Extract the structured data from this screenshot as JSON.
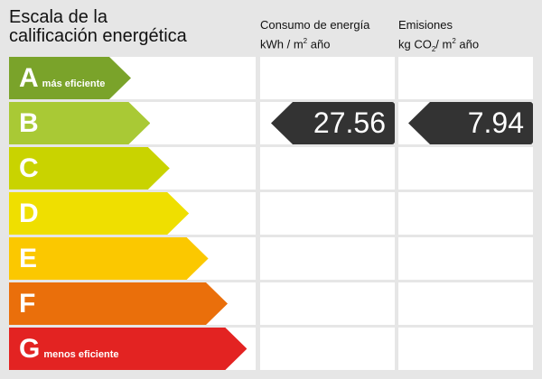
{
  "title_line1": "Escala de la",
  "title_line2": "calificación energética",
  "consumo": {
    "line1": "Consumo de energía",
    "unit_a": "kWh / m",
    "sup": "2",
    "unit_b": " año"
  },
  "emisiones": {
    "line1": "Emisiones",
    "unit_a": "kg CO",
    "sub": "2",
    "unit_b": "/ m",
    "sup": "2",
    "unit_c": " año"
  },
  "classes": [
    {
      "letter": "A",
      "note": "más eficiente",
      "color": "#7aa32a"
    },
    {
      "letter": "B",
      "note": "",
      "color": "#a9c935"
    },
    {
      "letter": "C",
      "note": "",
      "color": "#c9d300"
    },
    {
      "letter": "D",
      "note": "",
      "color": "#efdf00"
    },
    {
      "letter": "E",
      "note": "",
      "color": "#fbc800"
    },
    {
      "letter": "F",
      "note": "",
      "color": "#ea6f0b"
    },
    {
      "letter": "G",
      "note": "menos eficiente",
      "color": "#e32322"
    }
  ],
  "rating": "B",
  "consumo_value": "27.56",
  "emisiones_value": "7.94"
}
